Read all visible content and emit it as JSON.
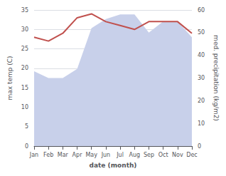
{
  "chart_data": {
    "type": "line",
    "xlabel": "date (month)",
    "ylabel": "max temp (C)",
    "y2label": "med. precipitation (kg/m2)",
    "categories": [
      "Jan",
      "Feb",
      "Mar",
      "Apr",
      "May",
      "Jun",
      "Jul",
      "Aug",
      "Sep",
      "Oct",
      "Nov",
      "Dec"
    ],
    "series": [
      {
        "type": "area",
        "axis": "y2",
        "color": "#c8d0ea",
        "values": [
          33,
          30,
          30,
          34,
          52,
          56,
          58,
          58,
          50,
          55,
          55,
          48
        ]
      },
      {
        "type": "line",
        "color": "#c0504d",
        "values": [
          28,
          27,
          29,
          33,
          34,
          32,
          31,
          30,
          32,
          32,
          32,
          29
        ]
      }
    ],
    "ylim": [
      0,
      35
    ],
    "yticks": [
      0,
      5,
      10,
      15,
      20,
      25,
      30,
      35
    ],
    "y2lim": [
      0,
      60
    ],
    "y2ticks": [
      0,
      10,
      20,
      30,
      40,
      50,
      60
    ],
    "grid": true
  }
}
